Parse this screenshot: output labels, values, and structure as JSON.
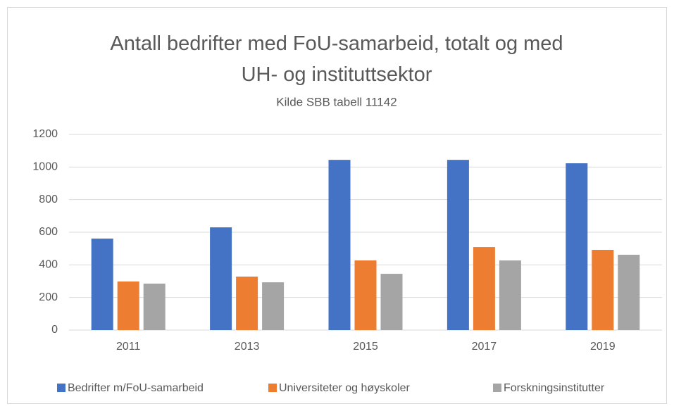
{
  "chart_data": {
    "type": "bar",
    "title": "Antall bedrifter med FoU-samarbeid, totalt og med UH- og instituttsektor",
    "subtitle": "Kilde SBB tabell 11142",
    "categories": [
      "2011",
      "2013",
      "2015",
      "2017",
      "2019"
    ],
    "series": [
      {
        "name": "Bedrifter m/FoU-samarbeid",
        "color": "#4472c4",
        "values": [
          561,
          630,
          1044,
          1044,
          1023
        ]
      },
      {
        "name": "Universiteter og høyskoler",
        "color": "#ed7d31",
        "values": [
          298,
          328,
          427,
          509,
          492
        ]
      },
      {
        "name": "Forskningsinstitutter",
        "color": "#a5a5a5",
        "values": [
          285,
          293,
          345,
          427,
          462
        ]
      }
    ],
    "ylim": [
      0,
      1200
    ],
    "yticks": [
      0,
      200,
      400,
      600,
      800,
      1000,
      1200
    ],
    "grid": true,
    "legend": "bottom"
  }
}
